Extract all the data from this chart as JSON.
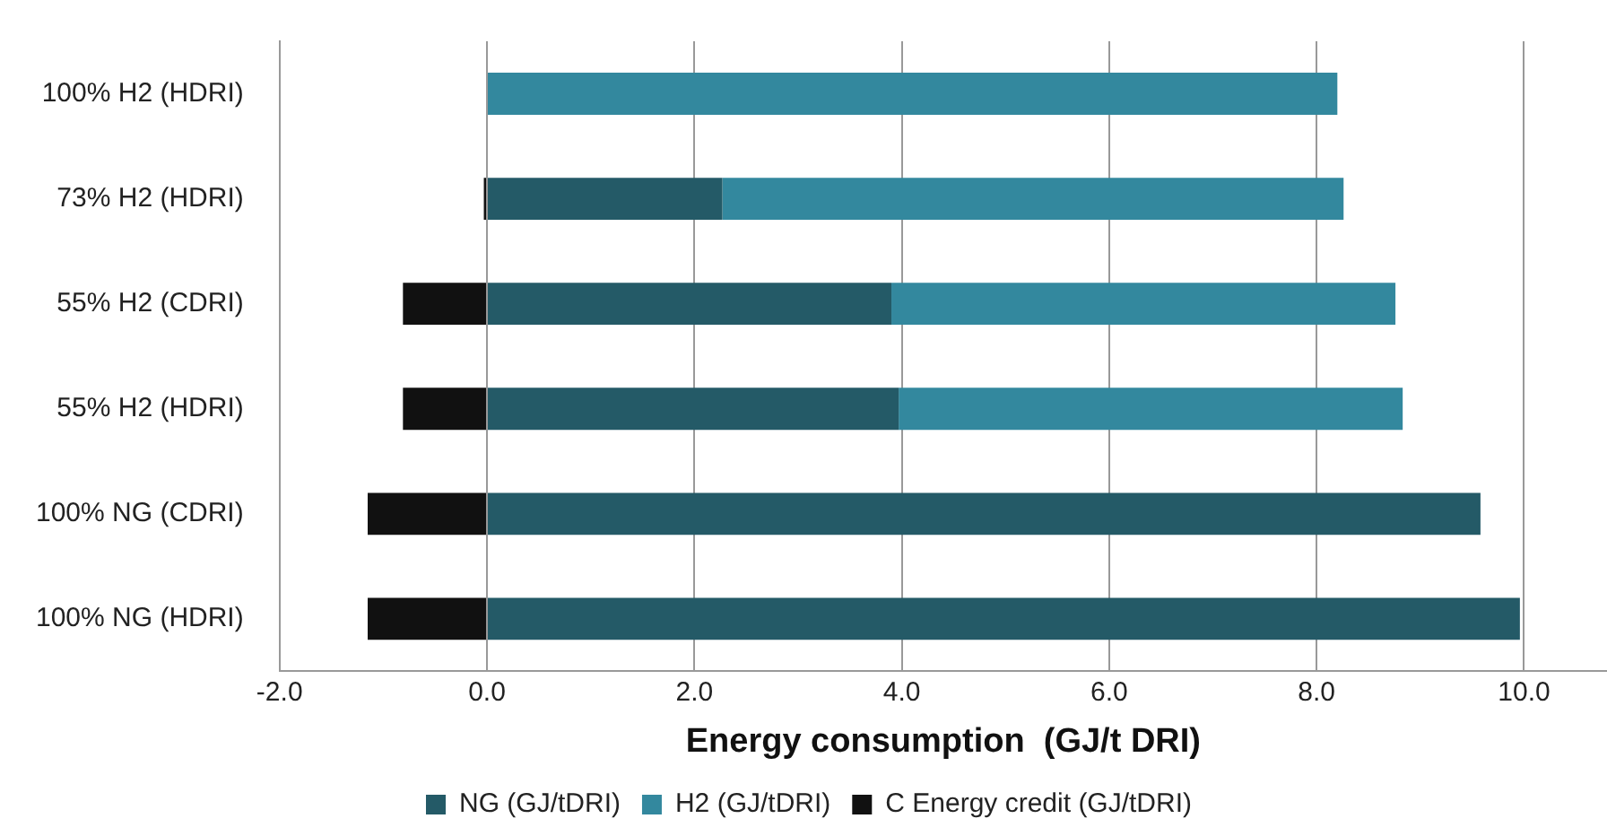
{
  "chart_data": {
    "type": "bar",
    "orientation": "horizontal",
    "stacked": true,
    "categories": [
      "100% H2 (HDRI)",
      "73% H2 (HDRI)",
      "55% H2 (CDRI)",
      "55% H2 (HDRI)",
      "100% NG (CDRI)",
      "100% NG (HDRI)"
    ],
    "series": [
      {
        "name": "NG (GJ/tDRI)",
        "color": "#245a67",
        "values": [
          null,
          2.27,
          3.9,
          3.97,
          9.58,
          9.96
        ]
      },
      {
        "name": "H2 (GJ/tDRI)",
        "color": "#33889e",
        "values": [
          8.2,
          5.99,
          4.86,
          4.86,
          null,
          null
        ]
      },
      {
        "name": "C Energy credit (GJ/tDRI)",
        "color": "#111111",
        "values": [
          null,
          -0.03,
          -0.81,
          -0.81,
          -1.15,
          -1.15
        ]
      }
    ],
    "xlabel": "Energy consumption  (GJ/t DRI)",
    "xlim": [
      -2,
      10.8
    ],
    "xticks": [
      {
        "value": -2,
        "label": "-2.0"
      },
      {
        "value": 0,
        "label": "0.0"
      },
      {
        "value": 2,
        "label": "2.0"
      },
      {
        "value": 4,
        "label": "4.0"
      },
      {
        "value": 6,
        "label": "6.0"
      },
      {
        "value": 8,
        "label": "8.0"
      },
      {
        "value": 10,
        "label": "10.0"
      }
    ],
    "grid": "x",
    "legend": "bottom"
  }
}
